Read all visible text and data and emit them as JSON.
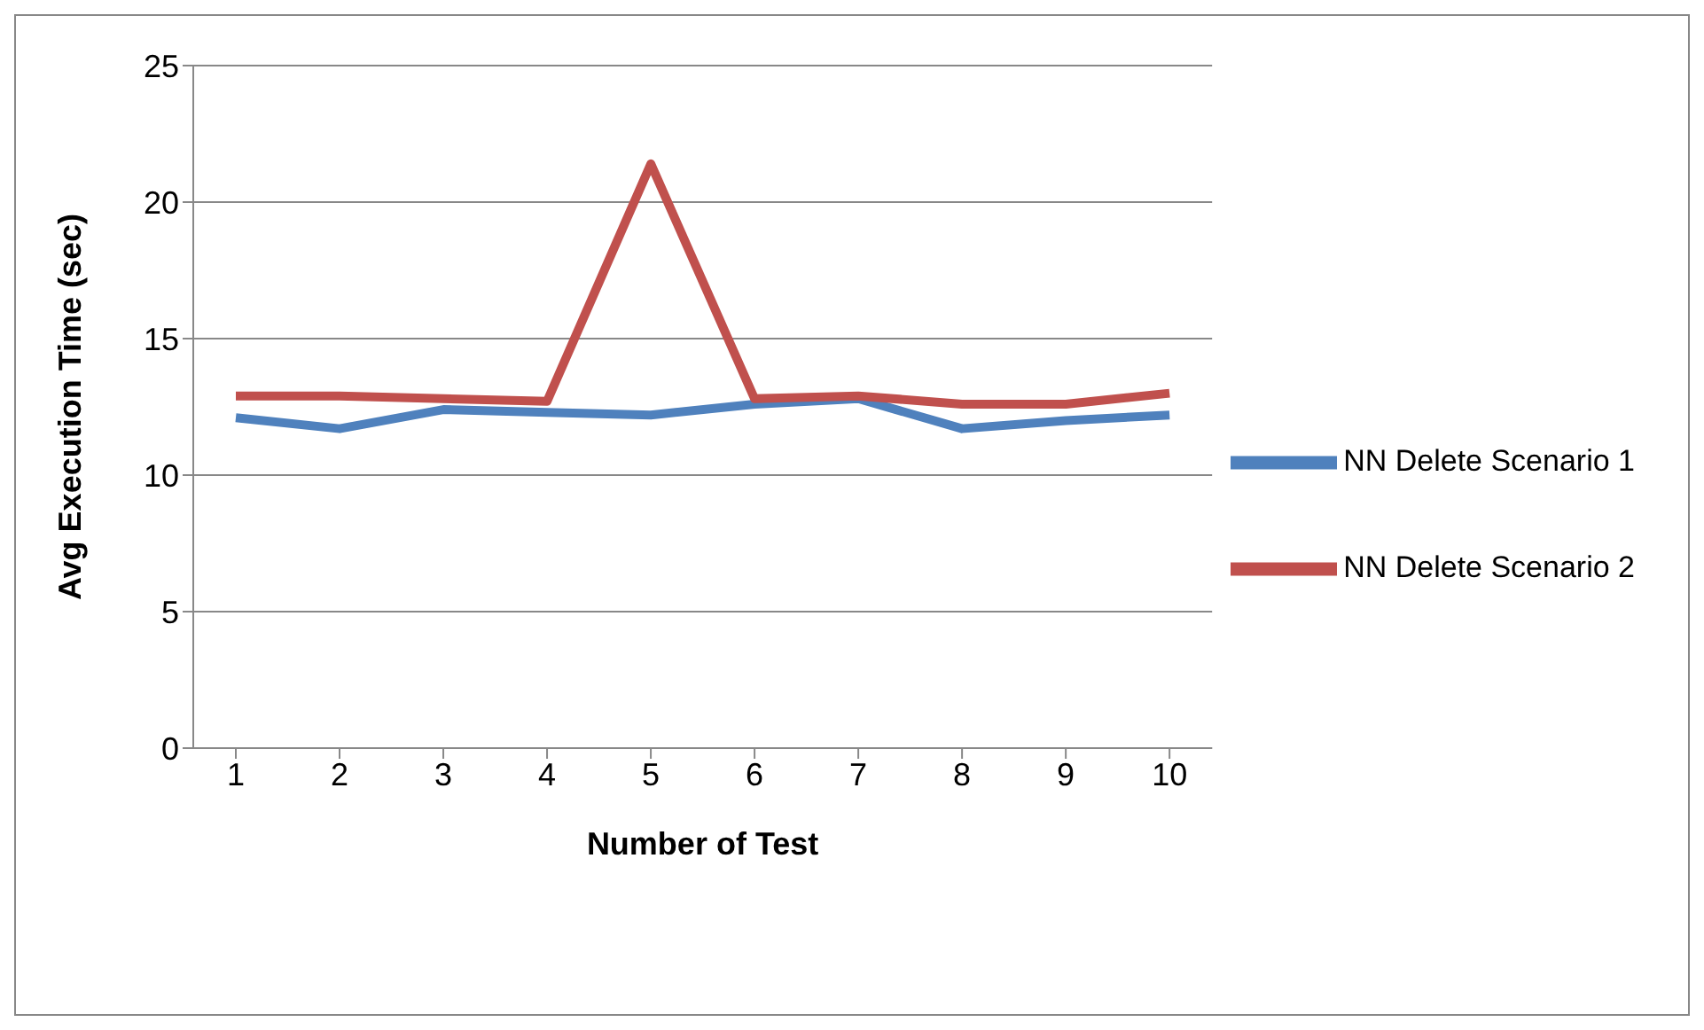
{
  "chart_data": {
    "type": "line",
    "xlabel": "Number of Test",
    "ylabel": "Avg Execution Time (sec)",
    "categories": [
      "1",
      "2",
      "3",
      "4",
      "5",
      "6",
      "7",
      "8",
      "9",
      "10"
    ],
    "series": [
      {
        "name": "NN Delete Scenario 1",
        "color": "#4f81bd",
        "values": [
          12.1,
          11.7,
          12.4,
          12.3,
          12.2,
          12.6,
          12.8,
          11.7,
          12.0,
          12.2
        ]
      },
      {
        "name": "NN Delete Scenario 2",
        "color": "#c0504d",
        "values": [
          12.9,
          12.9,
          12.8,
          12.7,
          21.4,
          12.8,
          12.9,
          12.6,
          12.6,
          13.0
        ]
      }
    ],
    "ylim": [
      0,
      25
    ],
    "yticks": [
      0,
      5,
      10,
      15,
      20,
      25
    ],
    "grid": "y",
    "legend": "right",
    "marker": "none",
    "line_style": "solid"
  }
}
